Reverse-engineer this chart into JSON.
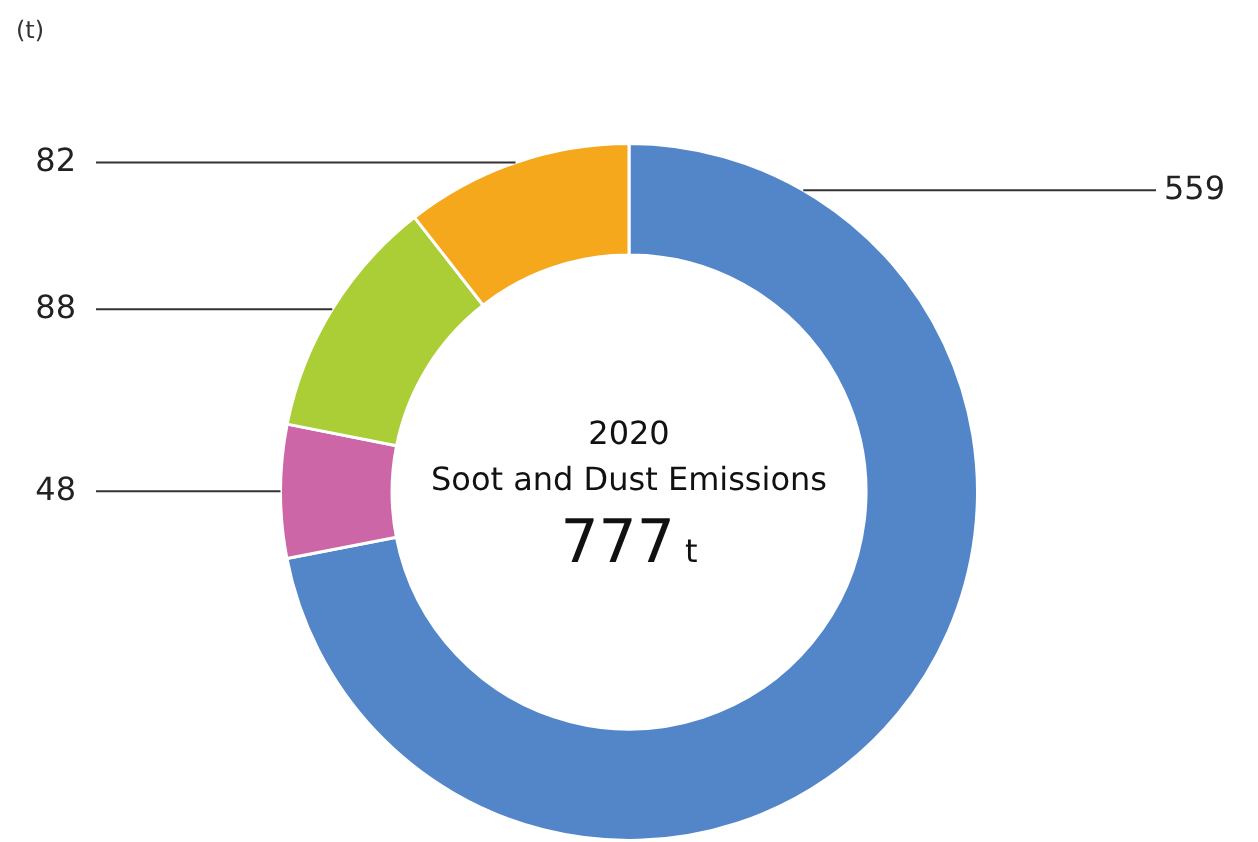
{
  "chart_data": {
    "type": "donut",
    "title": "2020",
    "subtitle": "Soot and Dust Emissions",
    "categories": [
      null,
      null,
      null,
      null
    ],
    "values": [
      559,
      48,
      88,
      82
    ],
    "colors": [
      "#5286c8",
      "#cc66a6",
      "#abcd35",
      "#f5a81c"
    ],
    "data_labels": true,
    "legend": false,
    "annotations": [
      "(t)",
      "777 t"
    ]
  }
}
